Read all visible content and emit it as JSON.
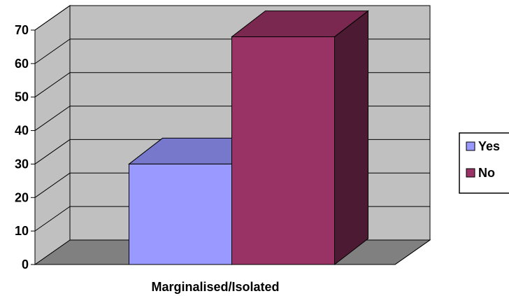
{
  "chart_data": {
    "type": "bar",
    "categories": [
      "Marginalised/Isolated"
    ],
    "series": [
      {
        "name": "Yes",
        "values": [
          30
        ],
        "color": "#9999ff",
        "top_color": "#7777cc",
        "side_color": "#5a5aa8"
      },
      {
        "name": "No",
        "values": [
          68
        ],
        "color": "#993366",
        "top_color": "#7a2850",
        "side_color": "#4d1a33"
      }
    ],
    "xlabel": "Marginalised/Isolated",
    "ylabel": "",
    "ylim": [
      0,
      70
    ],
    "yticks": [
      0,
      10,
      20,
      30,
      40,
      50,
      60,
      70
    ],
    "grid": true,
    "legend": "right",
    "style": "3d-column",
    "colors": {
      "back_wall": "#c0c0c0",
      "side_wall": "#c0c0c0",
      "floor": "#808080",
      "gridline": "#000000"
    }
  }
}
